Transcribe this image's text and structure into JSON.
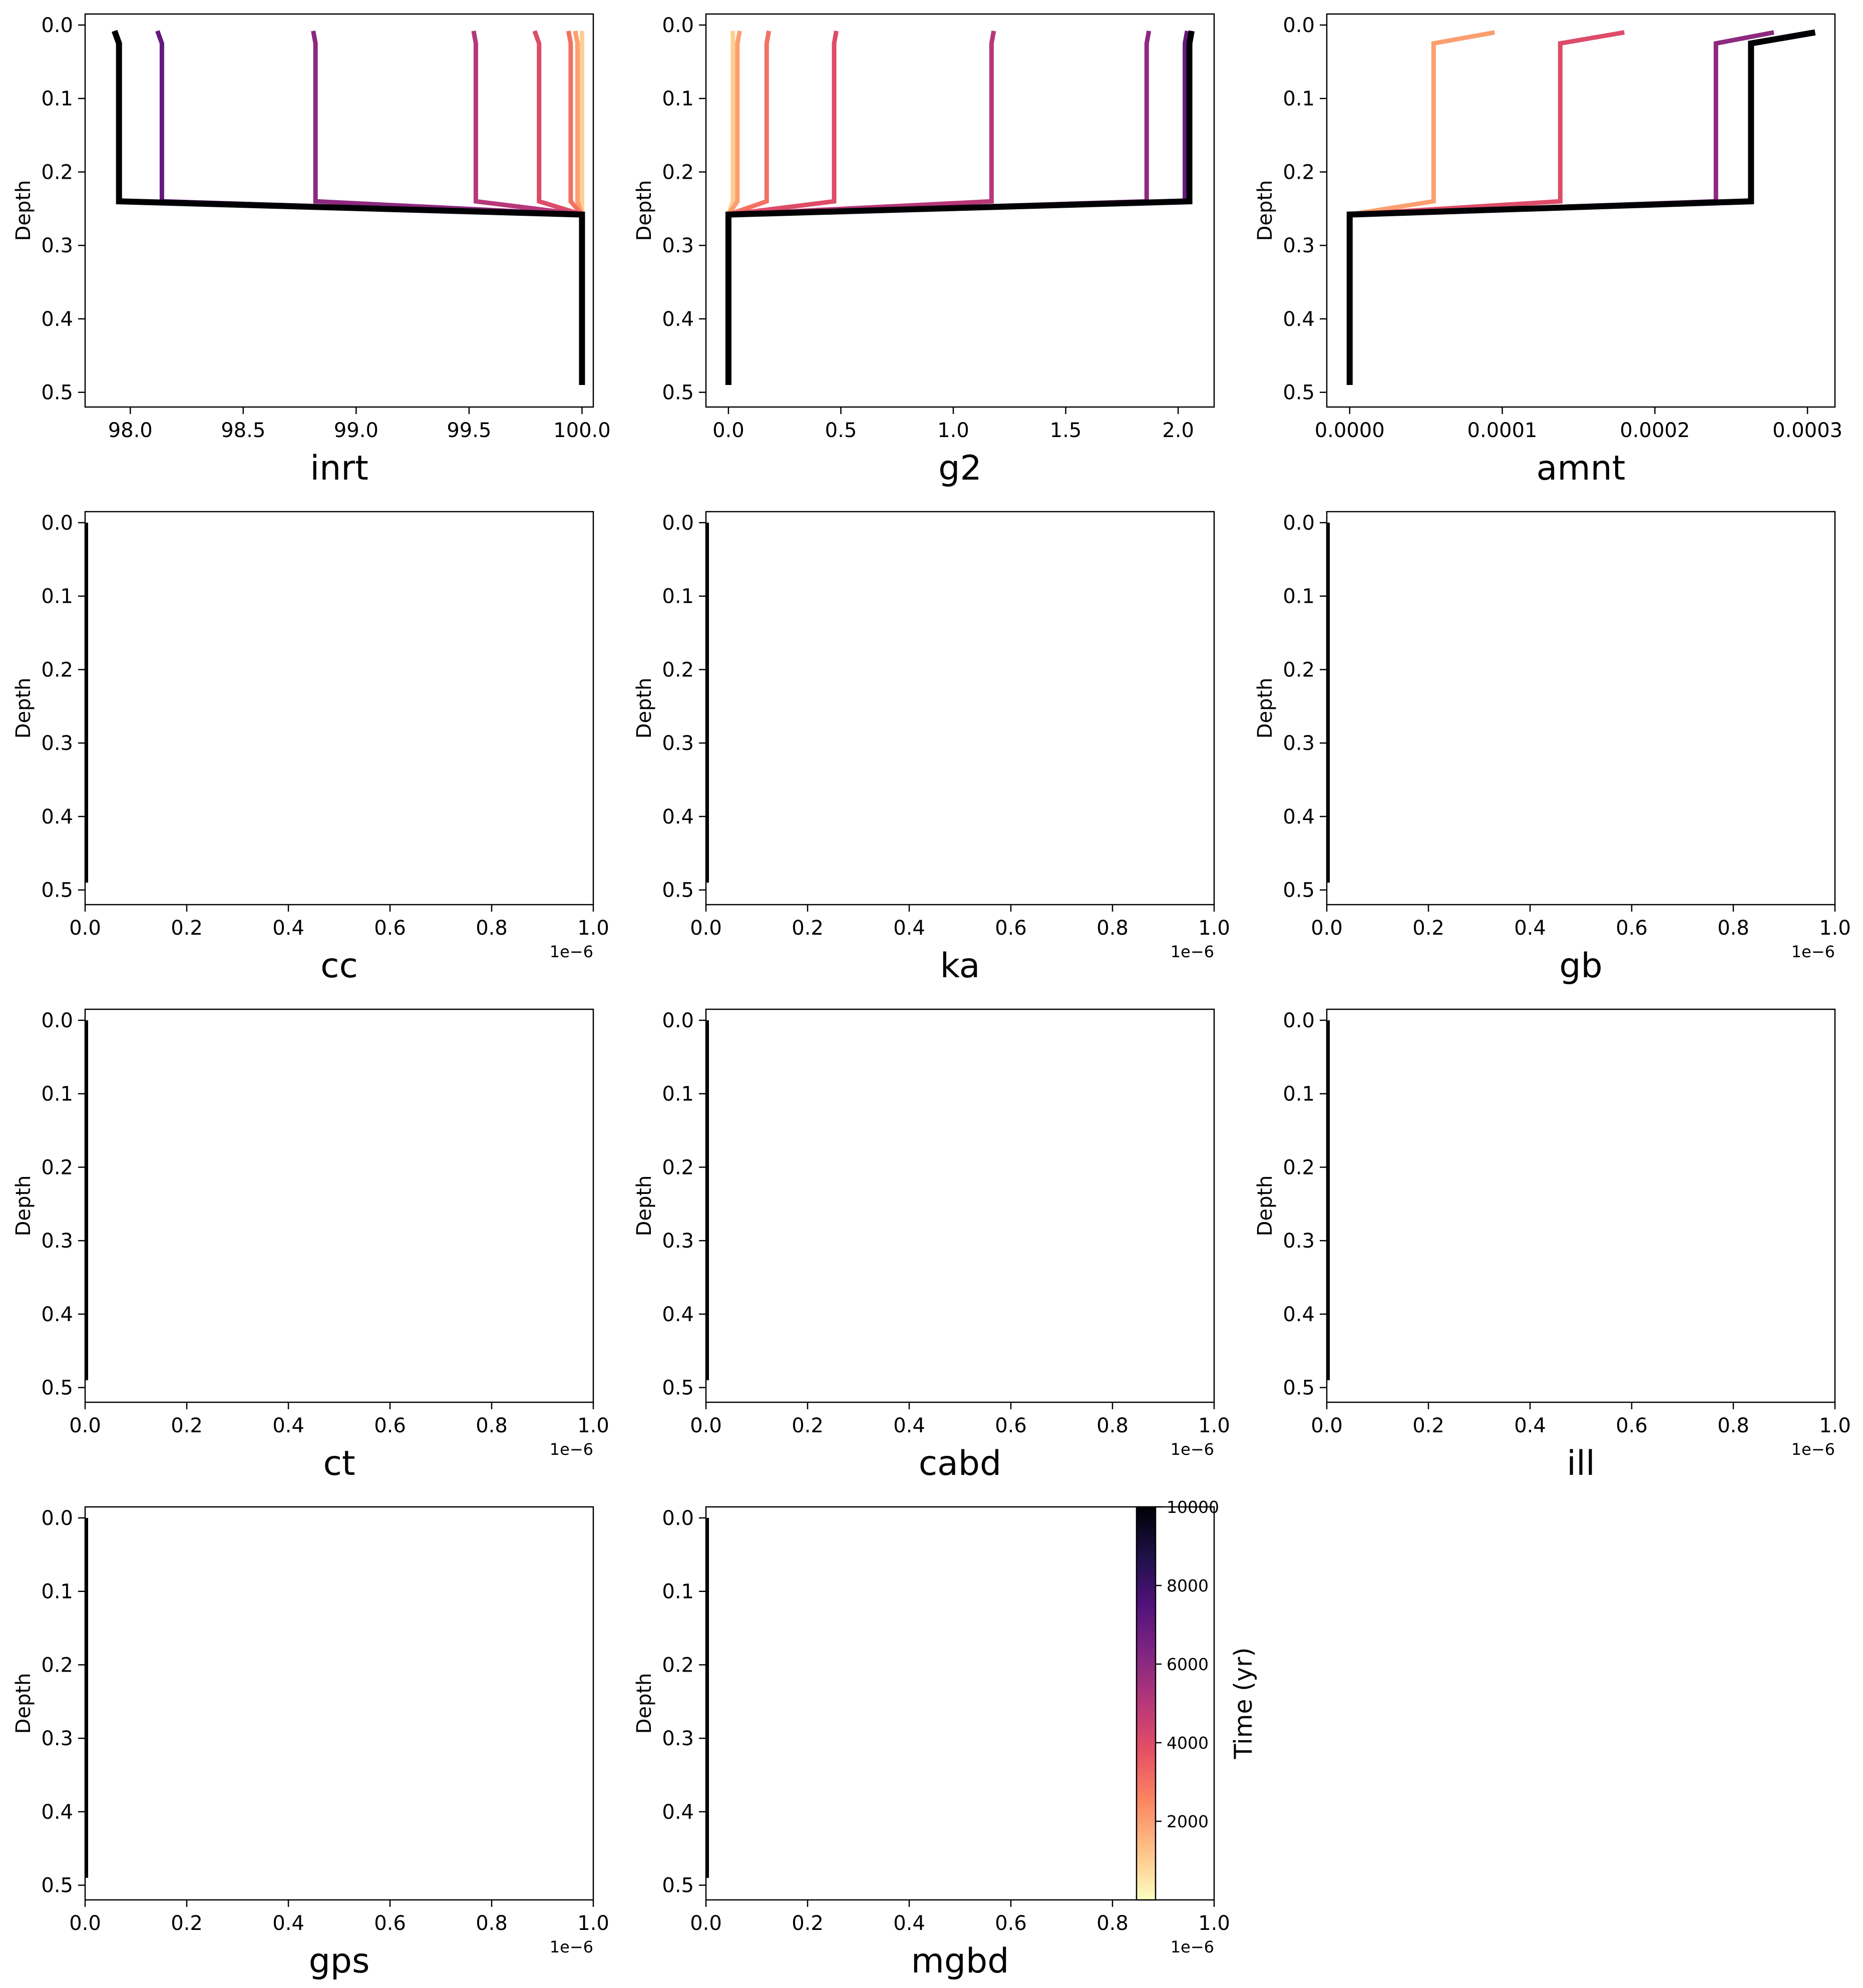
{
  "colorbar": {
    "label": "Time (yr)",
    "range": [
      0,
      10000
    ],
    "ticks": [
      2000,
      4000,
      6000,
      8000,
      10000
    ],
    "colormap": "magma_r",
    "stops": [
      "#fcfdbf",
      "#fec287",
      "#fb8761",
      "#e65164",
      "#b73779",
      "#822681",
      "#51127c",
      "#1d1147",
      "#000004"
    ]
  },
  "chart_data": [
    {
      "type": "line",
      "xlabel": "inrt",
      "ylabel": "Depth",
      "xlim": [
        97.8,
        100.05
      ],
      "ylim": [
        0.52,
        -0.015
      ],
      "xticks": [
        98.0,
        98.5,
        99.0,
        99.5,
        100.0
      ],
      "xtick_labels": [
        "98.0",
        "98.5",
        "99.0",
        "99.5",
        "100.0"
      ],
      "yticks": [
        0.0,
        0.1,
        0.2,
        0.3,
        0.4,
        0.5
      ],
      "ytick_labels": [
        "0.0",
        "0.1",
        "0.2",
        "0.3",
        "0.4",
        "0.5"
      ],
      "x_exponent": "",
      "series": [
        {
          "time": 1000,
          "points": [
            [
              100.0,
              0.008
            ],
            [
              100.0,
              0.025
            ],
            [
              100.0,
              0.24
            ],
            [
              100.0,
              0.258
            ],
            [
              100.0,
              0.49
            ]
          ]
        },
        {
          "time": 2000,
          "points": [
            [
              99.97,
              0.008
            ],
            [
              99.98,
              0.025
            ],
            [
              99.98,
              0.24
            ],
            [
              100.0,
              0.258
            ],
            [
              100.0,
              0.49
            ]
          ]
        },
        {
          "time": 3000,
          "points": [
            [
              99.94,
              0.008
            ],
            [
              99.95,
              0.025
            ],
            [
              99.95,
              0.24
            ],
            [
              100.0,
              0.258
            ],
            [
              100.0,
              0.49
            ]
          ]
        },
        {
          "time": 4000,
          "points": [
            [
              99.79,
              0.008
            ],
            [
              99.81,
              0.025
            ],
            [
              99.81,
              0.24
            ],
            [
              100.0,
              0.258
            ],
            [
              100.0,
              0.49
            ]
          ]
        },
        {
          "time": 5000,
          "points": [
            [
              99.52,
              0.008
            ],
            [
              99.53,
              0.025
            ],
            [
              99.53,
              0.24
            ],
            [
              100.0,
              0.258
            ],
            [
              100.0,
              0.49
            ]
          ]
        },
        {
          "time": 6000,
          "points": [
            [
              98.81,
              0.008
            ],
            [
              98.82,
              0.025
            ],
            [
              98.82,
              0.24
            ],
            [
              100.0,
              0.258
            ],
            [
              100.0,
              0.49
            ]
          ]
        },
        {
          "time": 7000,
          "points": [
            [
              98.12,
              0.008
            ],
            [
              98.14,
              0.025
            ],
            [
              98.14,
              0.24
            ],
            [
              100.0,
              0.258
            ],
            [
              100.0,
              0.49
            ]
          ]
        },
        {
          "time": 10000,
          "points": [
            [
              97.93,
              0.008
            ],
            [
              97.95,
              0.025
            ],
            [
              97.95,
              0.24
            ],
            [
              100.0,
              0.258
            ],
            [
              100.0,
              0.49
            ]
          ]
        }
      ]
    },
    {
      "type": "line",
      "xlabel": "g2",
      "ylabel": "Depth",
      "xlim": [
        -0.1,
        2.16
      ],
      "ylim": [
        0.52,
        -0.015
      ],
      "xticks": [
        0.0,
        0.5,
        1.0,
        1.5,
        2.0
      ],
      "xtick_labels": [
        "0.0",
        "0.5",
        "1.0",
        "1.5",
        "2.0"
      ],
      "yticks": [
        0.0,
        0.1,
        0.2,
        0.3,
        0.4,
        0.5
      ],
      "ytick_labels": [
        "0.0",
        "0.1",
        "0.2",
        "0.3",
        "0.4",
        "0.5"
      ],
      "x_exponent": "",
      "series": [
        {
          "time": 1000,
          "points": [
            [
              0.02,
              0.008
            ],
            [
              0.02,
              0.025
            ],
            [
              0.02,
              0.24
            ],
            [
              0.0,
              0.258
            ],
            [
              0.0,
              0.49
            ]
          ]
        },
        {
          "time": 2000,
          "points": [
            [
              0.05,
              0.008
            ],
            [
              0.04,
              0.025
            ],
            [
              0.04,
              0.24
            ],
            [
              0.0,
              0.258
            ],
            [
              0.0,
              0.49
            ]
          ]
        },
        {
          "time": 3000,
          "points": [
            [
              0.18,
              0.008
            ],
            [
              0.17,
              0.025
            ],
            [
              0.17,
              0.24
            ],
            [
              0.0,
              0.258
            ],
            [
              0.0,
              0.49
            ]
          ]
        },
        {
          "time": 4000,
          "points": [
            [
              0.48,
              0.008
            ],
            [
              0.47,
              0.025
            ],
            [
              0.47,
              0.24
            ],
            [
              0.0,
              0.258
            ],
            [
              0.0,
              0.49
            ]
          ]
        },
        {
          "time": 5000,
          "points": [
            [
              1.18,
              0.008
            ],
            [
              1.17,
              0.025
            ],
            [
              1.17,
              0.24
            ],
            [
              0.0,
              0.258
            ],
            [
              0.0,
              0.49
            ]
          ]
        },
        {
          "time": 6000,
          "points": [
            [
              1.87,
              0.008
            ],
            [
              1.86,
              0.025
            ],
            [
              1.86,
              0.24
            ],
            [
              0.0,
              0.258
            ],
            [
              0.0,
              0.49
            ]
          ]
        },
        {
          "time": 7000,
          "points": [
            [
              2.04,
              0.008
            ],
            [
              2.03,
              0.025
            ],
            [
              2.03,
              0.24
            ],
            [
              0.0,
              0.258
            ],
            [
              0.0,
              0.49
            ]
          ]
        },
        {
          "time": 10000,
          "points": [
            [
              2.06,
              0.008
            ],
            [
              2.05,
              0.025
            ],
            [
              2.05,
              0.24
            ],
            [
              0.0,
              0.258
            ],
            [
              0.0,
              0.49
            ]
          ]
        }
      ]
    },
    {
      "type": "line",
      "xlabel": "amnt",
      "ylabel": "Depth",
      "xlim": [
        -1.5e-05,
        0.000318
      ],
      "ylim": [
        0.52,
        -0.015
      ],
      "xticks": [
        0.0,
        0.0001,
        0.0002,
        0.0003
      ],
      "xtick_labels": [
        "0.0000",
        "0.0001",
        "0.0002",
        "0.0003"
      ],
      "yticks": [
        0.0,
        0.1,
        0.2,
        0.3,
        0.4,
        0.5
      ],
      "ytick_labels": [
        "0.0",
        "0.1",
        "0.2",
        "0.3",
        "0.4",
        "0.5"
      ],
      "x_exponent": "",
      "series": [
        {
          "time": 2000,
          "points": [
            [
              9.5e-05,
              0.01
            ],
            [
              5.5e-05,
              0.025
            ],
            [
              5.5e-05,
              0.24
            ],
            [
              0.0,
              0.258
            ],
            [
              0.0,
              0.49
            ]
          ]
        },
        {
          "time": 4000,
          "points": [
            [
              0.00018,
              0.01
            ],
            [
              0.000138,
              0.025
            ],
            [
              0.000138,
              0.24
            ],
            [
              0.0,
              0.258
            ],
            [
              0.0,
              0.49
            ]
          ]
        },
        {
          "time": 6000,
          "points": [
            [
              0.000278,
              0.01
            ],
            [
              0.00024,
              0.025
            ],
            [
              0.00024,
              0.24
            ],
            [
              0.0,
              0.258
            ],
            [
              0.0,
              0.49
            ]
          ]
        },
        {
          "time": 10000,
          "points": [
            [
              0.000305,
              0.01
            ],
            [
              0.000263,
              0.025
            ],
            [
              0.000263,
              0.24
            ],
            [
              0.0,
              0.258
            ],
            [
              0.0,
              0.49
            ]
          ]
        }
      ]
    },
    {
      "type": "line",
      "xlabel": "cc",
      "ylabel": "Depth",
      "xlim": [
        0,
        1
      ],
      "ylim": [
        0.52,
        -0.015
      ],
      "xticks": [
        0.0,
        0.2,
        0.4,
        0.6,
        0.8,
        1.0
      ],
      "xtick_labels": [
        "0.0",
        "0.2",
        "0.4",
        "0.6",
        "0.8",
        "1.0"
      ],
      "yticks": [
        0.0,
        0.1,
        0.2,
        0.3,
        0.4,
        0.5
      ],
      "ytick_labels": [
        "0.0",
        "0.1",
        "0.2",
        "0.3",
        "0.4",
        "0.5"
      ],
      "x_exponent": "1e−6",
      "series": [
        {
          "time": 10000,
          "points": [
            [
              0.0,
              0.0
            ],
            [
              0.0,
              0.49
            ]
          ]
        }
      ]
    },
    {
      "type": "line",
      "xlabel": "ka",
      "ylabel": "Depth",
      "xlim": [
        0,
        1
      ],
      "ylim": [
        0.52,
        -0.015
      ],
      "xticks": [
        0.0,
        0.2,
        0.4,
        0.6,
        0.8,
        1.0
      ],
      "xtick_labels": [
        "0.0",
        "0.2",
        "0.4",
        "0.6",
        "0.8",
        "1.0"
      ],
      "yticks": [
        0.0,
        0.1,
        0.2,
        0.3,
        0.4,
        0.5
      ],
      "ytick_labels": [
        "0.0",
        "0.1",
        "0.2",
        "0.3",
        "0.4",
        "0.5"
      ],
      "x_exponent": "1e−6",
      "series": [
        {
          "time": 10000,
          "points": [
            [
              0.0,
              0.0
            ],
            [
              0.0,
              0.49
            ]
          ]
        }
      ]
    },
    {
      "type": "line",
      "xlabel": "gb",
      "ylabel": "Depth",
      "xlim": [
        0,
        1
      ],
      "ylim": [
        0.52,
        -0.015
      ],
      "xticks": [
        0.0,
        0.2,
        0.4,
        0.6,
        0.8,
        1.0
      ],
      "xtick_labels": [
        "0.0",
        "0.2",
        "0.4",
        "0.6",
        "0.8",
        "1.0"
      ],
      "yticks": [
        0.0,
        0.1,
        0.2,
        0.3,
        0.4,
        0.5
      ],
      "ytick_labels": [
        "0.0",
        "0.1",
        "0.2",
        "0.3",
        "0.4",
        "0.5"
      ],
      "x_exponent": "1e−6",
      "series": [
        {
          "time": 10000,
          "points": [
            [
              0.0,
              0.0
            ],
            [
              0.0,
              0.49
            ]
          ]
        }
      ]
    },
    {
      "type": "line",
      "xlabel": "ct",
      "ylabel": "Depth",
      "xlim": [
        0,
        1
      ],
      "ylim": [
        0.52,
        -0.015
      ],
      "xticks": [
        0.0,
        0.2,
        0.4,
        0.6,
        0.8,
        1.0
      ],
      "xtick_labels": [
        "0.0",
        "0.2",
        "0.4",
        "0.6",
        "0.8",
        "1.0"
      ],
      "yticks": [
        0.0,
        0.1,
        0.2,
        0.3,
        0.4,
        0.5
      ],
      "ytick_labels": [
        "0.0",
        "0.1",
        "0.2",
        "0.3",
        "0.4",
        "0.5"
      ],
      "x_exponent": "1e−6",
      "series": [
        {
          "time": 10000,
          "points": [
            [
              0.0,
              0.0
            ],
            [
              0.0,
              0.49
            ]
          ]
        }
      ]
    },
    {
      "type": "line",
      "xlabel": "cabd",
      "ylabel": "Depth",
      "xlim": [
        0,
        1
      ],
      "ylim": [
        0.52,
        -0.015
      ],
      "xticks": [
        0.0,
        0.2,
        0.4,
        0.6,
        0.8,
        1.0
      ],
      "xtick_labels": [
        "0.0",
        "0.2",
        "0.4",
        "0.6",
        "0.8",
        "1.0"
      ],
      "yticks": [
        0.0,
        0.1,
        0.2,
        0.3,
        0.4,
        0.5
      ],
      "ytick_labels": [
        "0.0",
        "0.1",
        "0.2",
        "0.3",
        "0.4",
        "0.5"
      ],
      "x_exponent": "1e−6",
      "series": [
        {
          "time": 10000,
          "points": [
            [
              0.0,
              0.0
            ],
            [
              0.0,
              0.49
            ]
          ]
        }
      ]
    },
    {
      "type": "line",
      "xlabel": "ill",
      "ylabel": "Depth",
      "xlim": [
        0,
        1
      ],
      "ylim": [
        0.52,
        -0.015
      ],
      "xticks": [
        0.0,
        0.2,
        0.4,
        0.6,
        0.8,
        1.0
      ],
      "xtick_labels": [
        "0.0",
        "0.2",
        "0.4",
        "0.6",
        "0.8",
        "1.0"
      ],
      "yticks": [
        0.0,
        0.1,
        0.2,
        0.3,
        0.4,
        0.5
      ],
      "ytick_labels": [
        "0.0",
        "0.1",
        "0.2",
        "0.3",
        "0.4",
        "0.5"
      ],
      "x_exponent": "1e−6",
      "series": [
        {
          "time": 10000,
          "points": [
            [
              0.0,
              0.0
            ],
            [
              0.0,
              0.49
            ]
          ]
        }
      ]
    },
    {
      "type": "line",
      "xlabel": "gps",
      "ylabel": "Depth",
      "xlim": [
        0,
        1
      ],
      "ylim": [
        0.52,
        -0.015
      ],
      "xticks": [
        0.0,
        0.2,
        0.4,
        0.6,
        0.8,
        1.0
      ],
      "xtick_labels": [
        "0.0",
        "0.2",
        "0.4",
        "0.6",
        "0.8",
        "1.0"
      ],
      "yticks": [
        0.0,
        0.1,
        0.2,
        0.3,
        0.4,
        0.5
      ],
      "ytick_labels": [
        "0.0",
        "0.1",
        "0.2",
        "0.3",
        "0.4",
        "0.5"
      ],
      "x_exponent": "1e−6",
      "series": [
        {
          "time": 10000,
          "points": [
            [
              0.0,
              0.0
            ],
            [
              0.0,
              0.49
            ]
          ]
        }
      ]
    },
    {
      "type": "line",
      "xlabel": "mgbd",
      "ylabel": "Depth",
      "xlim": [
        0,
        1
      ],
      "ylim": [
        0.52,
        -0.015
      ],
      "xticks": [
        0.0,
        0.2,
        0.4,
        0.6,
        0.8,
        1.0
      ],
      "xtick_labels": [
        "0.0",
        "0.2",
        "0.4",
        "0.6",
        "0.8",
        "1.0"
      ],
      "yticks": [
        0.0,
        0.1,
        0.2,
        0.3,
        0.4,
        0.5
      ],
      "ytick_labels": [
        "0.0",
        "0.1",
        "0.2",
        "0.3",
        "0.4",
        "0.5"
      ],
      "x_exponent": "1e−6",
      "series": [
        {
          "time": 10000,
          "points": [
            [
              0.0,
              0.0
            ],
            [
              0.0,
              0.49
            ]
          ]
        }
      ]
    }
  ]
}
